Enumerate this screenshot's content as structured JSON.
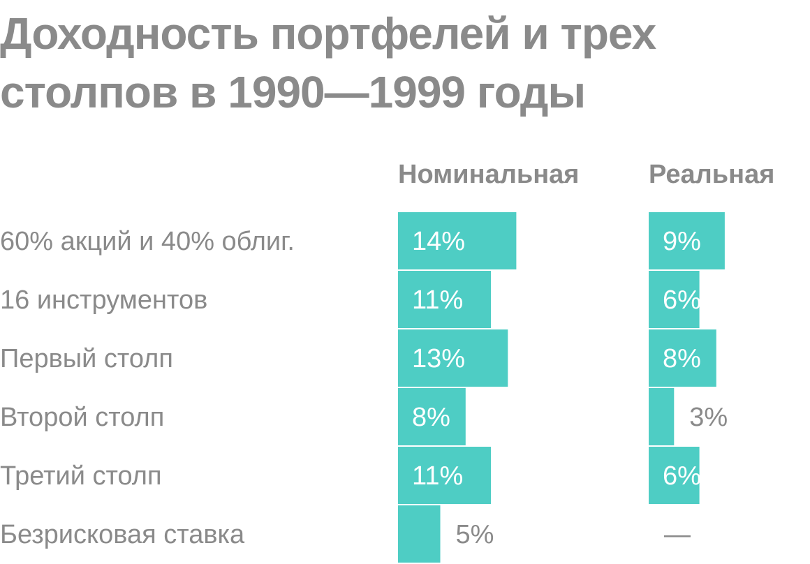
{
  "title": "Доходность портфелей и трех столпов в 1990—1999 годы",
  "chart_data": {
    "type": "bar",
    "title": "Доходность портфелей и трех столпов в 1990—1999 годы",
    "categories": [
      "60% акций и 40% облиг.",
      "16 инструментов",
      "Первый столп",
      "Второй столп",
      "Третий столп",
      "Безрисковая ставка"
    ],
    "series": [
      {
        "name": "Номинальная",
        "values": [
          14,
          11,
          13,
          8,
          11,
          5
        ],
        "labels": [
          "14%",
          "11%",
          "13%",
          "8%",
          "11%",
          "5%"
        ]
      },
      {
        "name": "Реальная",
        "values": [
          9,
          6,
          8,
          3,
          6,
          null
        ],
        "labels": [
          "9%",
          "6%",
          "8%",
          "3%",
          "6%",
          "—"
        ]
      }
    ],
    "unit": "%",
    "colors": {
      "bar": "#4ecdc4",
      "text": "#8a8a8a",
      "label_on_bar": "#ffffff"
    },
    "grid": false,
    "legend": "none"
  }
}
